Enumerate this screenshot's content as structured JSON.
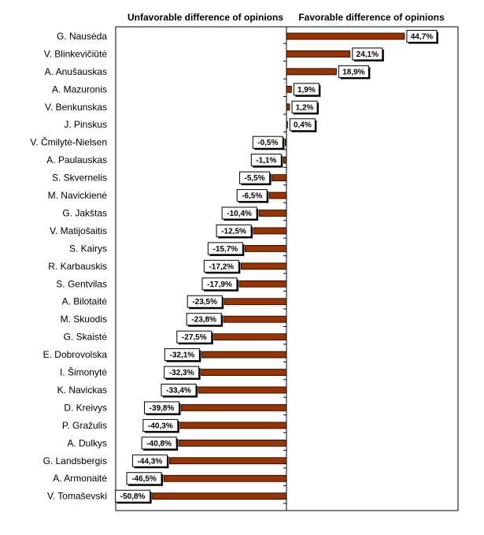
{
  "chart_data": {
    "type": "bar",
    "orientation": "horizontal",
    "header_left": "Unfavorable difference of opinions",
    "header_right": "Favorable difference of opinions",
    "categories": [
      "G. Nausėda",
      "V. Blinkevičiūtė",
      "A. Anušauskas",
      "A. Mazuronis",
      "V. Benkunskas",
      "J. Pinskus",
      "V. Čmilytė-Nielsen",
      "A. Paulauskas",
      "S. Skvernelis",
      "M. Navickienė",
      "G. Jakštas",
      "V. Matijošaitis",
      "S. Kairys",
      "R. Karbauskis",
      "S. Gentvilas",
      "A. Bilotaitė",
      "M. Skuodis",
      "G. Skaistė",
      "E. Dobrovolska",
      "I. Šimonytė",
      "K. Navickas",
      "D. Kreivys",
      "P. Gražulis",
      "A. Dulkys",
      "G. Landsbergis",
      "A. Armonaitė",
      "V. Tomaševski"
    ],
    "values": [
      44.7,
      24.1,
      18.9,
      1.9,
      1.2,
      0.4,
      -0.5,
      -1.1,
      -5.5,
      -6.5,
      -10.4,
      -12.5,
      -15.7,
      -17.2,
      -17.9,
      -23.5,
      -23.8,
      -27.5,
      -32.1,
      -32.3,
      -33.4,
      -39.8,
      -40.3,
      -40.8,
      -44.3,
      -46.5,
      -50.8
    ],
    "value_labels": [
      "44,7%",
      "24,1%",
      "18,9%",
      "1,9%",
      "1,2%",
      "0,4%",
      "-0,5%",
      "-1,1%",
      "-5,5%",
      "-6,5%",
      "-10,4%",
      "-12,5%",
      "-15,7%",
      "-17,2%",
      "-17,9%",
      "-23,5%",
      "-23,8%",
      "-27,5%",
      "-32,1%",
      "-32,3%",
      "-33,4%",
      "-39,8%",
      "-40,3%",
      "-40,8%",
      "-44,3%",
      "-46,5%",
      "-50,8%"
    ],
    "xlim": [
      -65,
      65
    ],
    "bar_color": "#993300",
    "grid": false,
    "legend": "none"
  }
}
